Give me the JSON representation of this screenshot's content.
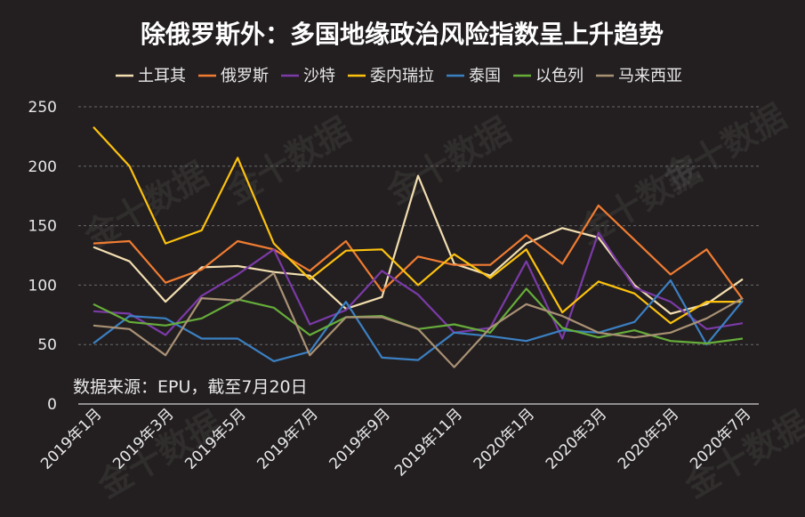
{
  "chart_data": {
    "type": "line",
    "title": "除俄罗斯外：多国地缘政治风险指数呈上升趋势",
    "source": "数据来源：EPU，截至7月20日",
    "watermark": "金十数据",
    "ylim": [
      0,
      250
    ],
    "y_ticks": [
      "0",
      "50",
      "100",
      "150",
      "200",
      "250"
    ],
    "grid": true,
    "legend_position": "top",
    "x": [
      "2019年1月",
      "2019年2月",
      "2019年3月",
      "2019年4月",
      "2019年5月",
      "2019年6月",
      "2019年7月",
      "2019年8月",
      "2019年9月",
      "2019年10月",
      "2019年11月",
      "2019年12月",
      "2020年1月",
      "2020年2月",
      "2020年3月",
      "2020年4月",
      "2020年5月",
      "2020年6月",
      "2020年7月"
    ],
    "x_tick_labels": [
      "2019年1月",
      "2019年3月",
      "2019年5月",
      "2019年7月",
      "2019年9月",
      "2019年11月",
      "2020年1月",
      "2020年3月",
      "2020年5月",
      "2020年7月"
    ],
    "series": [
      {
        "name": "土耳其",
        "color": "#f2deb0",
        "values": [
          132,
          120,
          86,
          115,
          116,
          111,
          108,
          80,
          90,
          192,
          118,
          108,
          135,
          148,
          140,
          100,
          76,
          84,
          105
        ]
      },
      {
        "name": "俄罗斯",
        "color": "#f07c32",
        "values": [
          135,
          137,
          102,
          113,
          137,
          130,
          112,
          137,
          95,
          124,
          117,
          117,
          142,
          118,
          167,
          138,
          109,
          130,
          88
        ]
      },
      {
        "name": "沙特",
        "color": "#7b3aa8",
        "values": [
          78,
          76,
          58,
          91,
          109,
          130,
          67,
          79,
          112,
          92,
          60,
          64,
          120,
          55,
          144,
          98,
          86,
          63,
          68
        ]
      },
      {
        "name": "委内瑞拉",
        "color": "#fdc20e",
        "values": [
          233,
          200,
          135,
          146,
          207,
          135,
          105,
          129,
          130,
          100,
          126,
          106,
          130,
          77,
          103,
          93,
          68,
          86,
          86
        ]
      },
      {
        "name": "泰国",
        "color": "#3b80c3",
        "values": [
          51,
          74,
          72,
          55,
          55,
          36,
          44,
          86,
          39,
          37,
          60,
          57,
          53,
          62,
          60,
          69,
          104,
          50,
          87
        ]
      },
      {
        "name": "以色列",
        "color": "#66ad3a",
        "values": [
          84,
          69,
          66,
          72,
          88,
          81,
          58,
          73,
          74,
          63,
          67,
          60,
          97,
          64,
          56,
          62,
          53,
          51,
          55
        ]
      },
      {
        "name": "马来西亚",
        "color": "#a99174",
        "values": [
          66,
          63,
          41,
          89,
          87,
          110,
          41,
          73,
          73,
          63,
          31,
          64,
          84,
          74,
          60,
          56,
          60,
          72,
          89
        ]
      }
    ]
  }
}
